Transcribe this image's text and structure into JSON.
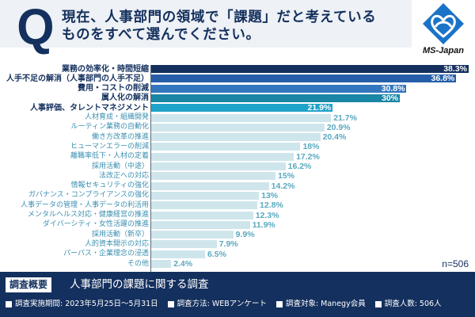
{
  "header": {
    "q_letter": "Q",
    "question_line1": "現在、人事部門の領域で「課題」だと考えている",
    "question_line2": "ものをすべて選んでください。"
  },
  "logo": {
    "text": "MS-Japan",
    "icon": "heart-diamond-logo-icon",
    "color": "#1a73c8"
  },
  "colors": {
    "rank1": "#14305e",
    "rank2": "#255ea8",
    "rank3": "#3276bd",
    "rank4": "#1a86a5",
    "rank5": "#1fa3c9",
    "other": "#cfe5ec",
    "footer": "#14305e"
  },
  "chart_data": {
    "type": "bar",
    "orientation": "horizontal",
    "title": "現在、人事部門の領域で「課題」だと考えているものをすべて選んでください。",
    "categories": [
      "業務の効率化・時間短縮",
      "人手不足の解消（人事部門の人手不足）",
      "費用・コストの削減",
      "属人化の解消",
      "人事評価、タレントマネジメント",
      "人材育成・組織開発",
      "ルーティン業務の自動化",
      "働き方改革の推進",
      "ヒューマンエラーの削減",
      "離職率低下・人材の定着",
      "採用活動（中途）",
      "法改正への対応",
      "情報セキュリティの強化",
      "ガバナンス・コンプライアンスの強化",
      "人事データの管理・人事データの利活用",
      "メンタルヘルス対応・健康経営の推進",
      "ダイバーシティ・女性活躍の推進",
      "採用活動（新卒）",
      "人的資本開示の対応",
      "パーパス・企業理念の浸透",
      "その他"
    ],
    "values": [
      38.3,
      36.8,
      30.8,
      30,
      21.9,
      21.7,
      20.9,
      20.4,
      18,
      17.2,
      16.2,
      15,
      14.2,
      13,
      12.8,
      12.3,
      11.9,
      9.9,
      7.9,
      6.5,
      2.4
    ],
    "value_labels": [
      "38.3%",
      "36.8%",
      "30.8%",
      "30%",
      "21.9%",
      "21.7%",
      "20.9%",
      "20.4%",
      "18%",
      "17.2%",
      "16.2%",
      "15%",
      "14.2%",
      "13%",
      "12.8%",
      "12.3%",
      "11.9%",
      "9.9%",
      "7.9%",
      "6.5%",
      "2.4%"
    ],
    "unit": "%",
    "xlim": [
      0,
      38.3
    ],
    "grid": false,
    "legend": "none",
    "sample_size": "n=506"
  },
  "footer": {
    "badge": "調査概要",
    "title": "人事部門の課題に関する調査",
    "meta": [
      "調査実施期間: 2023年5月25日～5月31日",
      "調査方法: WEBアンケート",
      "調査対象: Manegy会員",
      "調査人数: 506人"
    ]
  }
}
